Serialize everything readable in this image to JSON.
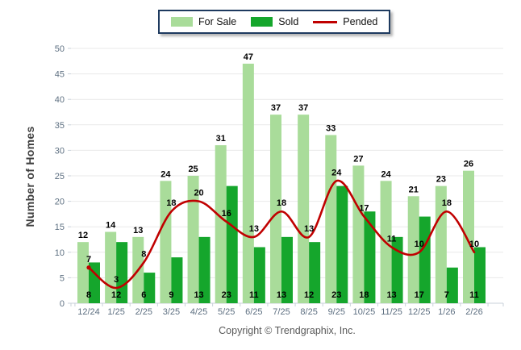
{
  "chart_data": {
    "type": "bar",
    "categories": [
      "12/24",
      "1/25",
      "2/25",
      "3/25",
      "4/25",
      "5/25",
      "6/25",
      "7/25",
      "8/25",
      "9/25",
      "10/25",
      "11/25",
      "12/25",
      "1/26",
      "2/26"
    ],
    "series": [
      {
        "name": "For Sale",
        "type": "bar",
        "color": "#a9dc9a",
        "values": [
          12,
          14,
          13,
          24,
          25,
          31,
          47,
          37,
          37,
          33,
          27,
          24,
          21,
          23,
          26
        ]
      },
      {
        "name": "Sold",
        "type": "bar",
        "color": "#15a62c",
        "values": [
          8,
          12,
          6,
          9,
          13,
          23,
          11,
          13,
          12,
          23,
          18,
          13,
          17,
          7,
          11
        ]
      },
      {
        "name": "Pended",
        "type": "line",
        "color": "#c00000",
        "values": [
          7,
          3,
          8,
          18,
          20,
          16,
          13,
          18,
          13,
          24,
          17,
          11,
          10,
          18,
          10
        ]
      }
    ],
    "title": "",
    "xlabel": "",
    "ylabel": "Number of Homes",
    "ylim": [
      0,
      50
    ],
    "ytick_step": 5,
    "grid": true,
    "legend_position": "top-center"
  },
  "legend": {
    "items": [
      {
        "label": "For Sale"
      },
      {
        "label": "Sold"
      },
      {
        "label": "Pended"
      }
    ]
  },
  "footer": {
    "copyright": "Copyright © Trendgraphix, Inc."
  },
  "colors": {
    "grid": "#e9e9e9",
    "axis": "#c9d1da",
    "tick_label": "#5d6f81",
    "value_label": "#000000",
    "ylabel_text": "#3f3f3f",
    "footer_text": "#595959",
    "legend_border": "#1e3a5f"
  }
}
